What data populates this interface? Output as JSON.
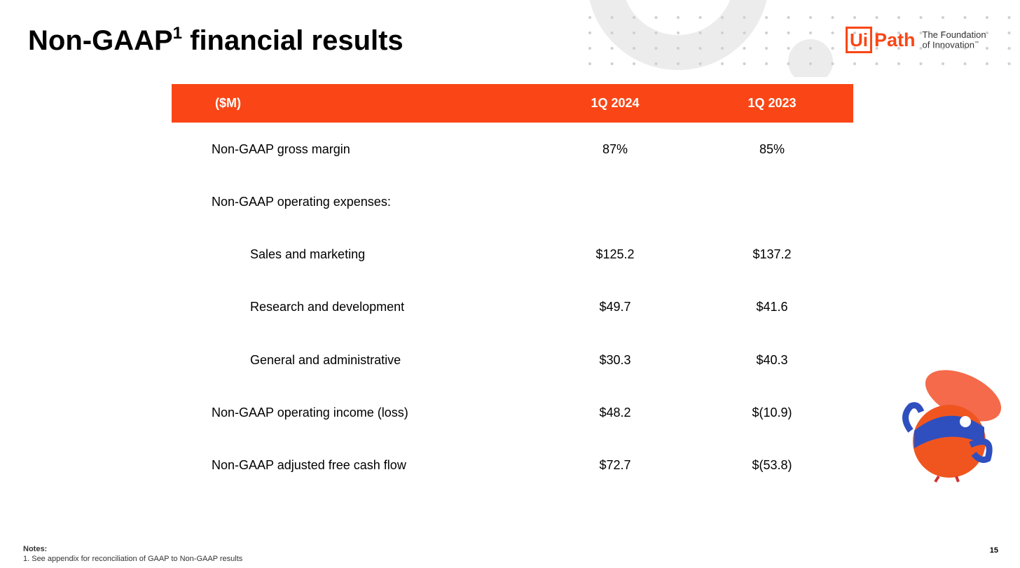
{
  "header": {
    "title_main": "Non-GAAP",
    "title_sup": "1",
    "title_rest": "financial results",
    "logo_ui": "Ui",
    "logo_path": "Path",
    "tagline_1": "The Foundation",
    "tagline_2": "of Innovation",
    "tagline_tm": "™"
  },
  "table": {
    "columns": [
      "($M)",
      "1Q 2024",
      "1Q 2023"
    ],
    "rows": [
      [
        "Non-GAAP gross margin",
        "87%",
        "85%"
      ],
      [
        "Non-GAAP operating expenses:"
      ],
      [
        "Sales and marketing",
        "$125.2",
        "$137.2"
      ],
      [
        "Research and development",
        "$49.7",
        "$41.6"
      ],
      [
        "General and administrative",
        "$30.3",
        "$40.3"
      ],
      [
        "Non-GAAP operating income (loss)",
        "$48.2",
        "$(10.9)"
      ],
      [
        "Non-GAAP adjusted free cash flow",
        "$72.7",
        "$(53.8)"
      ]
    ]
  },
  "notes": {
    "label": "Notes:",
    "items": [
      "1. See appendix for reconciliation of GAAP to Non-GAAP results"
    ]
  },
  "page_number": "15"
}
